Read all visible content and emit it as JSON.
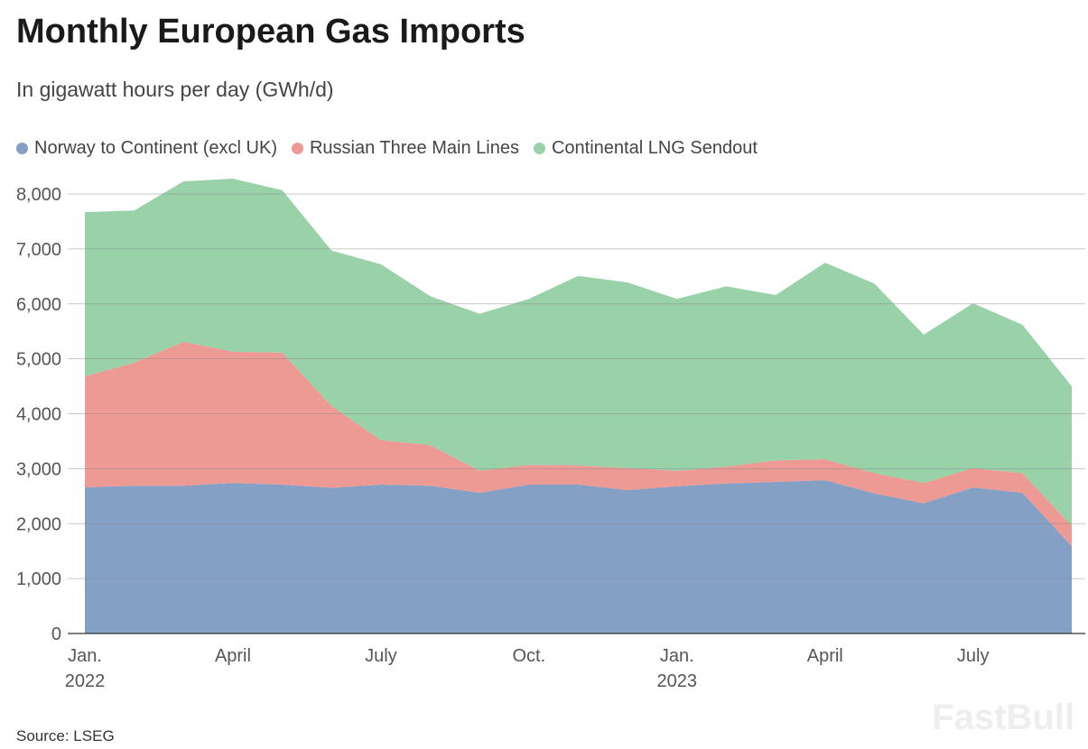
{
  "chart_data": {
    "type": "area",
    "stacked": true,
    "title": "Monthly European Gas Imports",
    "subtitle": "In gigawatt hours per day (GWh/d)",
    "source": "Source: LSEG",
    "x": [
      "2022-01",
      "2022-02",
      "2022-03",
      "2022-04",
      "2022-05",
      "2022-06",
      "2022-07",
      "2022-08",
      "2022-09",
      "2022-10",
      "2022-11",
      "2022-12",
      "2023-01",
      "2023-02",
      "2023-03",
      "2023-04",
      "2023-05",
      "2023-06",
      "2023-07",
      "2023-08",
      "2023-09"
    ],
    "x_ticks": [
      {
        "index": 0,
        "label": "Jan.",
        "sub": "2022"
      },
      {
        "index": 3,
        "label": "April",
        "sub": ""
      },
      {
        "index": 6,
        "label": "July",
        "sub": ""
      },
      {
        "index": 9,
        "label": "Oct.",
        "sub": ""
      },
      {
        "index": 12,
        "label": "Jan.",
        "sub": "2023"
      },
      {
        "index": 15,
        "label": "April",
        "sub": ""
      },
      {
        "index": 18,
        "label": "July",
        "sub": ""
      }
    ],
    "ylim": [
      0,
      8000
    ],
    "y_ticks": [
      0,
      1000,
      2000,
      3000,
      4000,
      5000,
      6000,
      7000,
      8000
    ],
    "y_tick_labels": [
      "0",
      "1,000",
      "2,000",
      "3,000",
      "4,000",
      "5,000",
      "6,000",
      "7,000",
      "8,000"
    ],
    "grid": true,
    "legend_position": "top-left",
    "series": [
      {
        "name": "Norway to Continent (excl UK)",
        "color": "#84a0c4",
        "values": [
          2660,
          2690,
          2690,
          2740,
          2710,
          2650,
          2710,
          2690,
          2560,
          2710,
          2710,
          2610,
          2680,
          2730,
          2760,
          2790,
          2550,
          2370,
          2660,
          2560,
          1590
        ]
      },
      {
        "name": "Russian Three Main Lines",
        "color": "#ec9a93",
        "values": [
          2020,
          2240,
          2620,
          2390,
          2400,
          1490,
          810,
          740,
          400,
          360,
          350,
          400,
          280,
          310,
          390,
          380,
          370,
          370,
          350,
          360,
          370
        ]
      },
      {
        "name": "Continental LNG Sendout",
        "color": "#99d1a8",
        "values": [
          2990,
          2770,
          2920,
          3150,
          2960,
          2830,
          3200,
          2710,
          2860,
          3020,
          3450,
          3380,
          3130,
          3280,
          3010,
          3580,
          3450,
          2700,
          3000,
          2700,
          2540
        ]
      }
    ]
  },
  "watermark": "FastBull"
}
